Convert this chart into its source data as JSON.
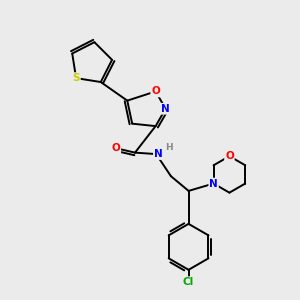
{
  "background_color": "#ebebeb",
  "bond_color": "#000000",
  "atom_colors": {
    "S": "#cccc00",
    "O": "#ff0000",
    "N": "#0000ff",
    "Cl": "#00aa00",
    "H": "#888888",
    "C": "#000000"
  },
  "figsize": [
    3.0,
    3.0
  ],
  "dpi": 100,
  "lw": 1.4
}
